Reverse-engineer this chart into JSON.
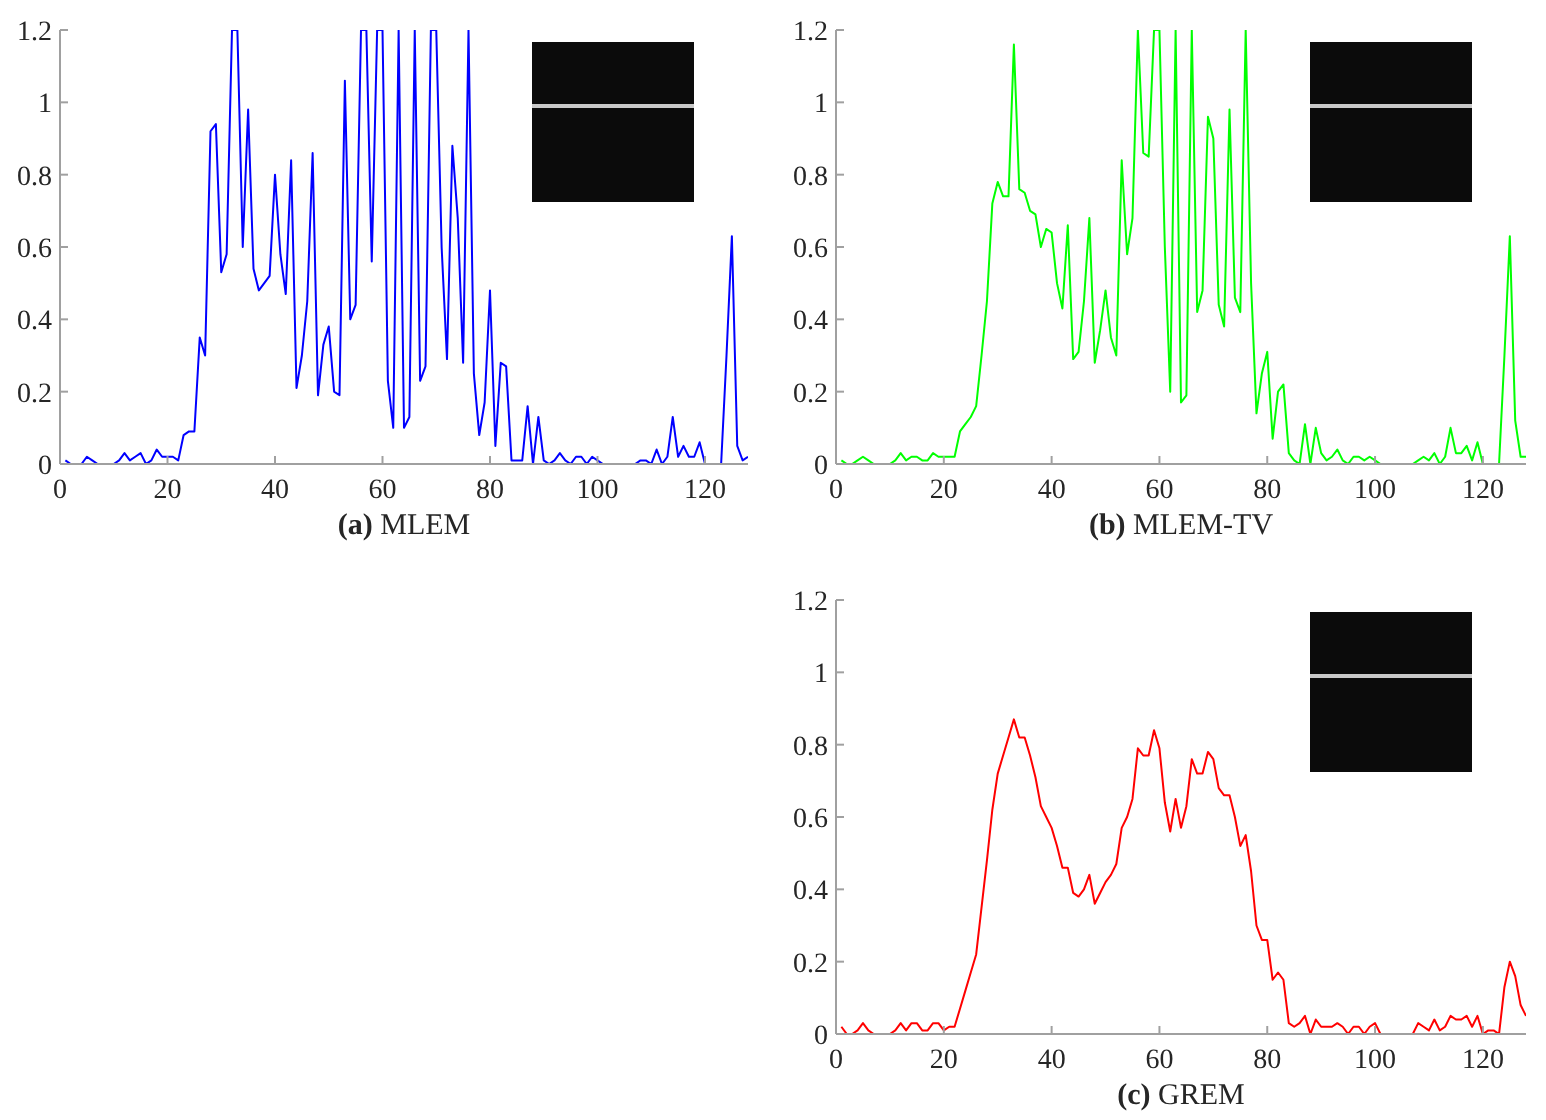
{
  "chart_data": [
    {
      "type": "line",
      "xlabel": "(a) MLEM",
      "color": "#0000ff",
      "xlim": [
        0,
        128
      ],
      "xticks": [
        0,
        20,
        40,
        60,
        80,
        100,
        120
      ],
      "ylim": [
        0,
        1.2
      ],
      "yticks": [
        0,
        0.2,
        0.4,
        0.6,
        0.8,
        1,
        1.2
      ],
      "x": [
        1,
        2,
        3,
        4,
        5,
        6,
        7,
        8,
        9,
        10,
        11,
        12,
        13,
        14,
        15,
        16,
        17,
        18,
        19,
        20,
        21,
        22,
        23,
        24,
        25,
        26,
        27,
        28,
        29,
        30,
        31,
        32,
        33,
        34,
        35,
        36,
        37,
        38,
        39,
        40,
        41,
        42,
        43,
        44,
        45,
        46,
        47,
        48,
        49,
        50,
        51,
        52,
        53,
        54,
        55,
        56,
        57,
        58,
        59,
        60,
        61,
        62,
        63,
        64,
        65,
        66,
        67,
        68,
        69,
        70,
        71,
        72,
        73,
        74,
        75,
        76,
        77,
        78,
        79,
        80,
        81,
        82,
        83,
        84,
        85,
        86,
        87,
        88,
        89,
        90,
        91,
        92,
        93,
        94,
        95,
        96,
        97,
        98,
        99,
        100,
        101,
        102,
        103,
        104,
        105,
        106,
        107,
        108,
        109,
        110,
        111,
        112,
        113,
        114,
        115,
        116,
        117,
        118,
        119,
        120,
        121,
        122,
        123,
        124,
        125,
        126,
        127,
        128
      ],
      "values": [
        0.01,
        0,
        0,
        0,
        0.02,
        0.01,
        0,
        0,
        0,
        0,
        0.01,
        0.03,
        0.01,
        0.02,
        0.03,
        0,
        0.01,
        0.04,
        0.02,
        0.02,
        0.02,
        0.01,
        0.08,
        0.09,
        0.09,
        0.35,
        0.3,
        0.92,
        0.94,
        0.53,
        0.58,
        1.2,
        1.2,
        0.6,
        0.98,
        0.54,
        0.48,
        0.5,
        0.52,
        0.8,
        0.58,
        0.47,
        0.84,
        0.21,
        0.3,
        0.45,
        0.86,
        0.19,
        0.33,
        0.38,
        0.2,
        0.19,
        1.06,
        0.4,
        0.44,
        1.2,
        1.2,
        0.56,
        1.2,
        1.2,
        0.23,
        0.1,
        1.2,
        0.1,
        0.13,
        1.2,
        0.23,
        0.27,
        1.2,
        1.2,
        0.6,
        0.29,
        0.88,
        0.68,
        0.28,
        1.2,
        0.25,
        0.08,
        0.17,
        0.48,
        0.05,
        0.28,
        0.27,
        0.01,
        0.01,
        0.01,
        0.16,
        0,
        0.13,
        0.01,
        0,
        0.01,
        0.03,
        0.01,
        0,
        0.02,
        0.02,
        0,
        0.02,
        0.01,
        0,
        0,
        0,
        0,
        0,
        0,
        0,
        0.01,
        0.01,
        0,
        0.04,
        0,
        0.02,
        0.13,
        0.02,
        0.05,
        0.02,
        0.02,
        0.06,
        0,
        0,
        0,
        0,
        0.3,
        0.63,
        0.05,
        0.01,
        0.02
      ]
    },
    {
      "type": "line",
      "xlabel": "(b) MLEM-TV",
      "color": "#00ff00",
      "xlim": [
        0,
        128
      ],
      "xticks": [
        0,
        20,
        40,
        60,
        80,
        100,
        120
      ],
      "ylim": [
        0,
        1.2
      ],
      "yticks": [
        0,
        0.2,
        0.4,
        0.6,
        0.8,
        1,
        1.2
      ],
      "x": [
        1,
        2,
        3,
        4,
        5,
        6,
        7,
        8,
        9,
        10,
        11,
        12,
        13,
        14,
        15,
        16,
        17,
        18,
        19,
        20,
        21,
        22,
        23,
        24,
        25,
        26,
        27,
        28,
        29,
        30,
        31,
        32,
        33,
        34,
        35,
        36,
        37,
        38,
        39,
        40,
        41,
        42,
        43,
        44,
        45,
        46,
        47,
        48,
        49,
        50,
        51,
        52,
        53,
        54,
        55,
        56,
        57,
        58,
        59,
        60,
        61,
        62,
        63,
        64,
        65,
        66,
        67,
        68,
        69,
        70,
        71,
        72,
        73,
        74,
        75,
        76,
        77,
        78,
        79,
        80,
        81,
        82,
        83,
        84,
        85,
        86,
        87,
        88,
        89,
        90,
        91,
        92,
        93,
        94,
        95,
        96,
        97,
        98,
        99,
        100,
        101,
        102,
        103,
        104,
        105,
        106,
        107,
        108,
        109,
        110,
        111,
        112,
        113,
        114,
        115,
        116,
        117,
        118,
        119,
        120,
        121,
        122,
        123,
        124,
        125,
        126,
        127,
        128
      ],
      "values": [
        0.01,
        0,
        0,
        0.01,
        0.02,
        0.01,
        0,
        0,
        0,
        0,
        0.01,
        0.03,
        0.01,
        0.02,
        0.02,
        0.01,
        0.01,
        0.03,
        0.02,
        0.02,
        0.02,
        0.02,
        0.09,
        0.11,
        0.13,
        0.16,
        0.3,
        0.45,
        0.72,
        0.78,
        0.74,
        0.74,
        1.16,
        0.76,
        0.75,
        0.7,
        0.69,
        0.6,
        0.65,
        0.64,
        0.5,
        0.43,
        0.66,
        0.29,
        0.31,
        0.45,
        0.68,
        0.28,
        0.37,
        0.48,
        0.35,
        0.3,
        0.84,
        0.58,
        0.68,
        1.2,
        0.86,
        0.85,
        1.2,
        1.2,
        0.6,
        0.2,
        1.2,
        0.17,
        0.19,
        1.2,
        0.42,
        0.48,
        0.96,
        0.9,
        0.44,
        0.38,
        0.98,
        0.46,
        0.42,
        1.2,
        0.5,
        0.14,
        0.25,
        0.31,
        0.07,
        0.2,
        0.22,
        0.03,
        0.01,
        0,
        0.11,
        0,
        0.1,
        0.03,
        0.01,
        0.02,
        0.04,
        0.01,
        0,
        0.02,
        0.02,
        0.01,
        0.02,
        0.01,
        0,
        0,
        0,
        0,
        0,
        0,
        0,
        0.01,
        0.02,
        0.01,
        0.03,
        0,
        0.02,
        0.1,
        0.03,
        0.03,
        0.05,
        0.01,
        0.06,
        0,
        0,
        0,
        0,
        0.3,
        0.63,
        0.12,
        0.02,
        0.02
      ]
    },
    {
      "type": "line",
      "xlabel": "(c) GREM",
      "color": "#ff0000",
      "xlim": [
        0,
        128
      ],
      "xticks": [
        0,
        20,
        40,
        60,
        80,
        100,
        120
      ],
      "ylim": [
        0,
        1.2
      ],
      "yticks": [
        0,
        0.2,
        0.4,
        0.6,
        0.8,
        1,
        1.2
      ],
      "x": [
        1,
        2,
        3,
        4,
        5,
        6,
        7,
        8,
        9,
        10,
        11,
        12,
        13,
        14,
        15,
        16,
        17,
        18,
        19,
        20,
        21,
        22,
        23,
        24,
        25,
        26,
        27,
        28,
        29,
        30,
        31,
        32,
        33,
        34,
        35,
        36,
        37,
        38,
        39,
        40,
        41,
        42,
        43,
        44,
        45,
        46,
        47,
        48,
        49,
        50,
        51,
        52,
        53,
        54,
        55,
        56,
        57,
        58,
        59,
        60,
        61,
        62,
        63,
        64,
        65,
        66,
        67,
        68,
        69,
        70,
        71,
        72,
        73,
        74,
        75,
        76,
        77,
        78,
        79,
        80,
        81,
        82,
        83,
        84,
        85,
        86,
        87,
        88,
        89,
        90,
        91,
        92,
        93,
        94,
        95,
        96,
        97,
        98,
        99,
        100,
        101,
        102,
        103,
        104,
        105,
        106,
        107,
        108,
        109,
        110,
        111,
        112,
        113,
        114,
        115,
        116,
        117,
        118,
        119,
        120,
        121,
        122,
        123,
        124,
        125,
        126,
        127,
        128
      ],
      "values": [
        0.02,
        0,
        0,
        0.01,
        0.03,
        0.01,
        0,
        0,
        0,
        0,
        0.01,
        0.03,
        0.01,
        0.03,
        0.03,
        0.01,
        0.01,
        0.03,
        0.03,
        0.01,
        0.02,
        0.02,
        0.07,
        0.12,
        0.17,
        0.22,
        0.35,
        0.48,
        0.62,
        0.72,
        0.77,
        0.82,
        0.87,
        0.82,
        0.82,
        0.77,
        0.71,
        0.63,
        0.6,
        0.57,
        0.52,
        0.46,
        0.46,
        0.39,
        0.38,
        0.4,
        0.44,
        0.36,
        0.39,
        0.42,
        0.44,
        0.47,
        0.57,
        0.6,
        0.65,
        0.79,
        0.77,
        0.77,
        0.84,
        0.79,
        0.64,
        0.56,
        0.65,
        0.57,
        0.63,
        0.76,
        0.72,
        0.72,
        0.78,
        0.76,
        0.68,
        0.66,
        0.66,
        0.6,
        0.52,
        0.55,
        0.45,
        0.3,
        0.26,
        0.26,
        0.15,
        0.17,
        0.15,
        0.03,
        0.02,
        0.03,
        0.05,
        0,
        0.04,
        0.02,
        0.02,
        0.02,
        0.03,
        0.02,
        0,
        0.02,
        0.02,
        0,
        0.02,
        0.03,
        0,
        0,
        0,
        0,
        0,
        0,
        0,
        0.03,
        0.02,
        0.01,
        0.04,
        0.01,
        0.02,
        0.05,
        0.04,
        0.04,
        0.05,
        0.02,
        0.05,
        0,
        0.01,
        0.01,
        0,
        0.13,
        0.2,
        0.16,
        0.08,
        0.05
      ]
    }
  ]
}
